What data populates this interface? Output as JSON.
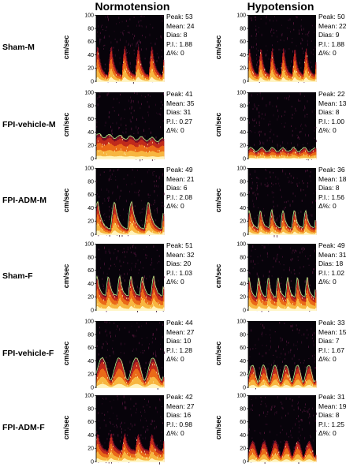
{
  "columns": [
    "Normotension",
    "Hypotension"
  ],
  "row_labels": [
    "Sham-M",
    "FPI-vehicle-M",
    "FPI-ADM-M",
    "Sham-F",
    "FPI-vehicle-F",
    "FPI-ADM-F"
  ],
  "y_axis_label": "cm/sec",
  "y_ticks": [
    "100",
    "80",
    "60",
    "40",
    "20",
    "0"
  ],
  "stat_labels": {
    "peak": "Peak:",
    "mean": "Mean:",
    "dias": "Dias:",
    "pi": "P.I.:",
    "delta": "Δ%:"
  },
  "panels": [
    {
      "row": 0,
      "col": 0,
      "peak": "53",
      "mean": "24",
      "dias": "8",
      "pi": "1.88",
      "delta": "0",
      "beats": 5,
      "pattern": "pulsatile",
      "envelope": false
    },
    {
      "row": 0,
      "col": 1,
      "peak": "50",
      "mean": "22",
      "dias": "9",
      "pi": "1.88",
      "delta": "0",
      "beats": 6,
      "pattern": "pulsatile",
      "envelope": false
    },
    {
      "row": 1,
      "col": 0,
      "peak": "41",
      "mean": "35",
      "dias": "31",
      "pi": "0.27",
      "delta": "0",
      "beats": 0,
      "pattern": "flat",
      "envelope": true
    },
    {
      "row": 1,
      "col": 1,
      "peak": "22",
      "mean": "13",
      "dias": "8",
      "pi": "1.00",
      "delta": "0",
      "beats": 0,
      "pattern": "flat",
      "envelope": true
    },
    {
      "row": 2,
      "col": 0,
      "peak": "49",
      "mean": "21",
      "dias": "6",
      "pi": "2.08",
      "delta": "0",
      "beats": 4,
      "pattern": "pulsatile",
      "envelope": true
    },
    {
      "row": 2,
      "col": 1,
      "peak": "36",
      "mean": "18",
      "dias": "8",
      "pi": "1.56",
      "delta": "0",
      "beats": 6,
      "pattern": "pulsatile",
      "envelope": true
    },
    {
      "row": 3,
      "col": 0,
      "peak": "51",
      "mean": "32",
      "dias": "20",
      "pi": "1.03",
      "delta": "0",
      "beats": 6,
      "pattern": "pulsatile",
      "envelope": true
    },
    {
      "row": 3,
      "col": 1,
      "peak": "49",
      "mean": "31",
      "dias": "18",
      "pi": "1.02",
      "delta": "0",
      "beats": 7,
      "pattern": "pulsatile",
      "envelope": true
    },
    {
      "row": 4,
      "col": 0,
      "peak": "44",
      "mean": "27",
      "dias": "10",
      "pi": "1.28",
      "delta": "0",
      "beats": 4,
      "pattern": "wavy",
      "envelope": true
    },
    {
      "row": 4,
      "col": 1,
      "peak": "33",
      "mean": "15",
      "dias": "7",
      "pi": "1.67",
      "delta": "0",
      "beats": 6,
      "pattern": "wavy",
      "envelope": true
    },
    {
      "row": 5,
      "col": 0,
      "peak": "42",
      "mean": "27",
      "dias": "16",
      "pi": "0.98",
      "delta": "0",
      "beats": 5,
      "pattern": "pulsatile",
      "envelope": false
    },
    {
      "row": 5,
      "col": 1,
      "peak": "31",
      "mean": "19",
      "dias": "8",
      "pi": "1.25",
      "delta": "0",
      "beats": 6,
      "pattern": "wavy",
      "envelope": false
    }
  ]
}
